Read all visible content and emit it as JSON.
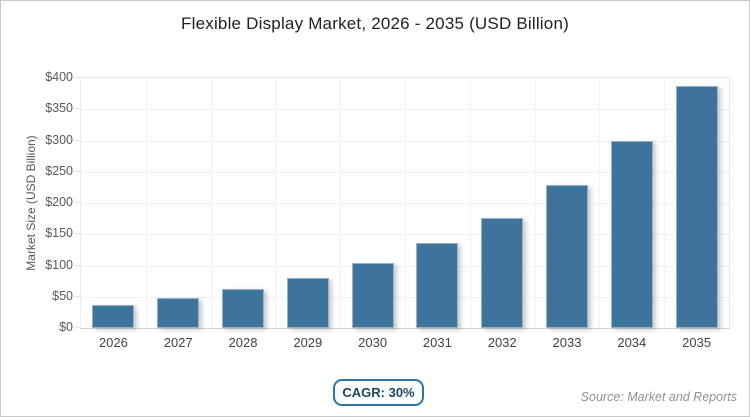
{
  "figure": {
    "title": "Flexible Display Market, 2026 - 2035 (USD Billion)",
    "cagr_badge_label": "CAGR: 30%",
    "source_note": "Source: Market and Reports"
  },
  "colors": {
    "bar": "#3e739c",
    "badge_border": "#2e76a9",
    "badge_text": "#1e4563",
    "gridline": "#f0f0f0",
    "axis_label": "#595959",
    "x_label": "#434343",
    "title_text": "#222222",
    "source_text": "#8a9399"
  },
  "chart_data": {
    "type": "bar",
    "title": "Flexible Display Market, 2026 - 2035 (USD Billion)",
    "categories": [
      "2026",
      "2027",
      "2028",
      "2029",
      "2030",
      "2031",
      "2032",
      "2033",
      "2034",
      "2035"
    ],
    "values": [
      36.6,
      47.6,
      61.8,
      80.4,
      104.5,
      135.9,
      176.6,
      229.6,
      298.5,
      388.0
    ],
    "series_name": "Market Size",
    "xlabel": "",
    "ylabel": "Market Size (USD Billion)",
    "ylim": [
      0,
      400
    ],
    "y_tick_step": 50,
    "y_tick_labels": [
      "$0",
      "$50",
      "$100",
      "$150",
      "$200",
      "$250",
      "$300",
      "$350",
      "$400"
    ],
    "grid": true,
    "legend": false,
    "annotations": [
      "CAGR: 30%",
      "Source: Market and Reports"
    ]
  }
}
